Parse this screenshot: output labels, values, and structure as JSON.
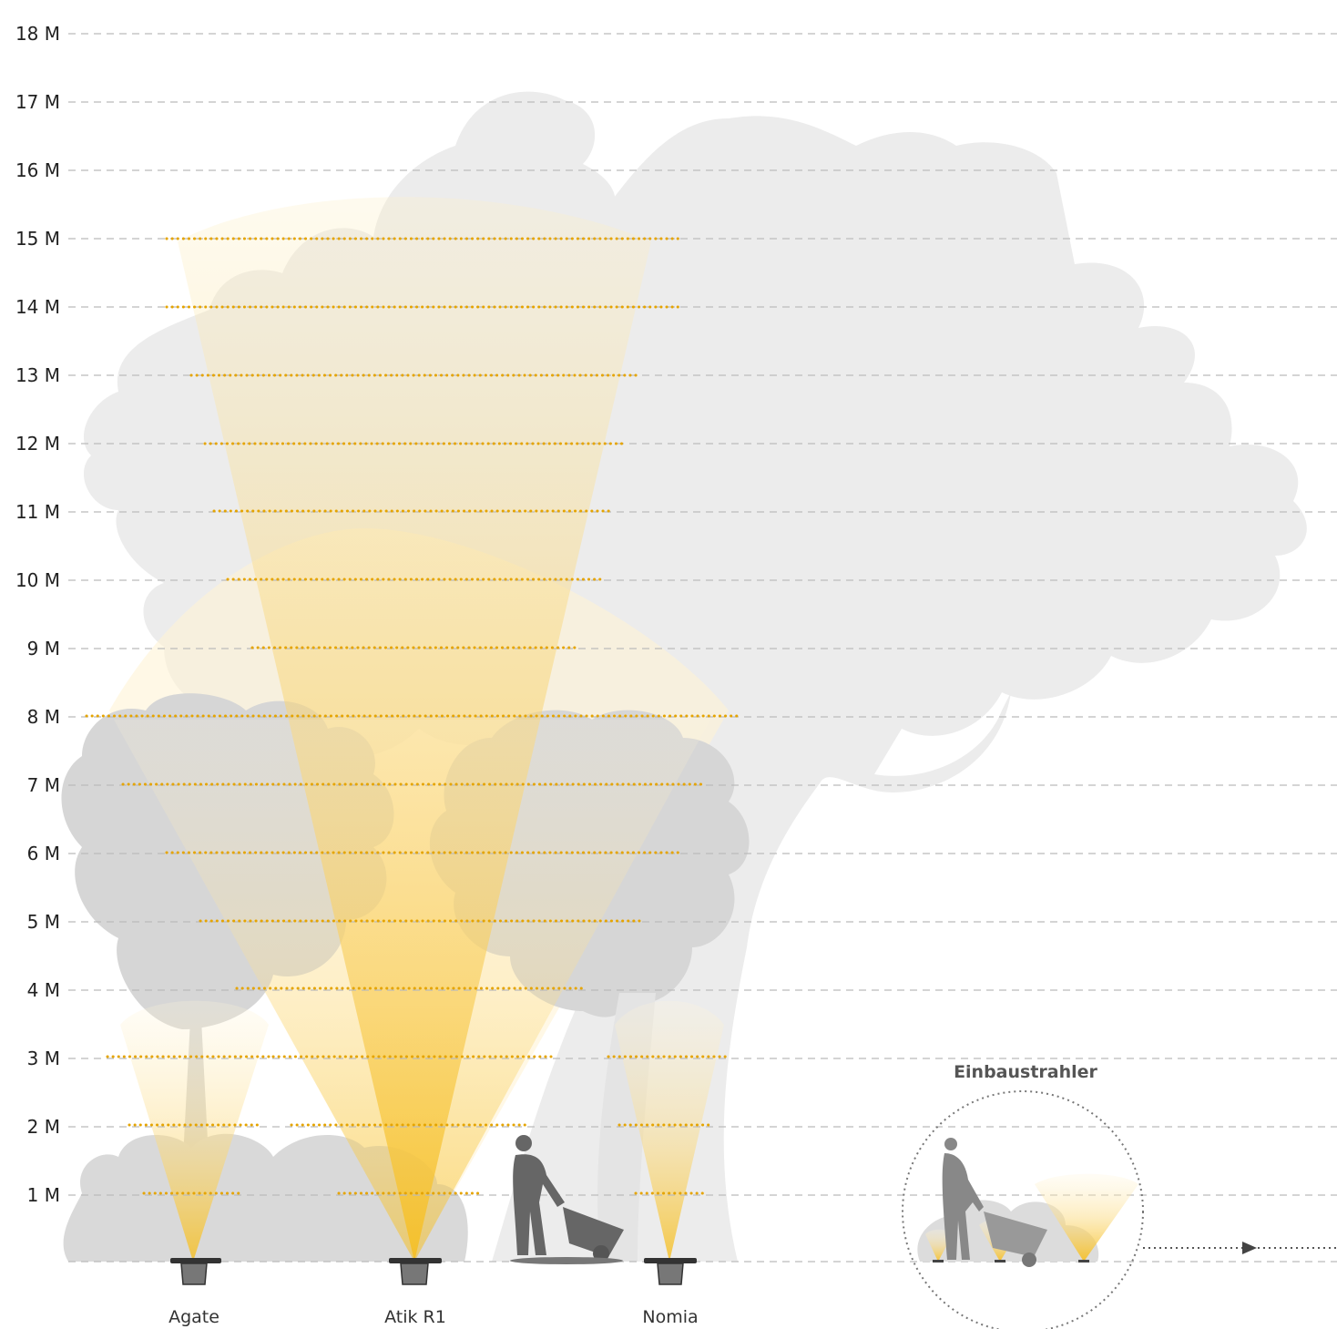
{
  "height_scale": {
    "unit": "M",
    "ticks": [
      "18 M",
      "17 M",
      "16 M",
      "15 M",
      "14 M",
      "13 M",
      "12 M",
      "11 M",
      "10 M",
      "9 M",
      "8 M",
      "7 M",
      "6 M",
      "5 M",
      "4 M",
      "3 M",
      "2 M",
      "1 M"
    ]
  },
  "fixtures": [
    {
      "name": "Agate",
      "beam_reach_m": 3
    },
    {
      "name": "Atik R1",
      "beam_reach_m": 15
    },
    {
      "name": "Nomia",
      "beam_reach_m": 3
    }
  ],
  "inset": {
    "title": "Einbaustrahler"
  },
  "colors": {
    "beam": "#F6BE1E",
    "silhouette": "#d8d8d8",
    "silhouette_light": "#ececec",
    "dots": "#E5A400",
    "grid": "#bbbbbb"
  },
  "icons": [
    "person-wheelbarrow-icon",
    "arrow-right-icon",
    "recessed-spotlight-icon"
  ]
}
